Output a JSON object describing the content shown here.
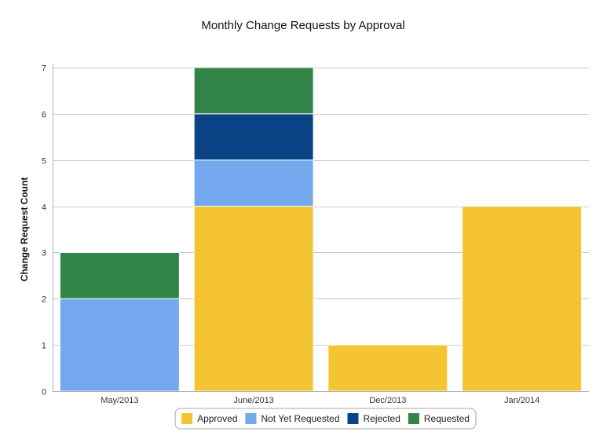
{
  "chart_data": {
    "type": "bar",
    "stacked": true,
    "title": "Monthly Change Requests by Approval",
    "xlabel": "",
    "ylabel": "Change Request Count",
    "ylim": [
      0,
      7
    ],
    "yticks": [
      0,
      1,
      2,
      3,
      4,
      5,
      6,
      7
    ],
    "grid": true,
    "legend_position": "bottom",
    "categories": [
      "May/2013",
      "June/2013",
      "Dec/2013",
      "Jan/2014"
    ],
    "series": [
      {
        "name": "Approved",
        "color": "#f4c431",
        "values": [
          0,
          4,
          1,
          4
        ]
      },
      {
        "name": "Not Yet Requested",
        "color": "#74a8ee",
        "values": [
          2,
          1,
          0,
          0
        ]
      },
      {
        "name": "Rejected",
        "color": "#0a4486",
        "values": [
          0,
          1,
          0,
          0
        ]
      },
      {
        "name": "Requested",
        "color": "#338449",
        "values": [
          1,
          1,
          0,
          0
        ]
      }
    ]
  }
}
